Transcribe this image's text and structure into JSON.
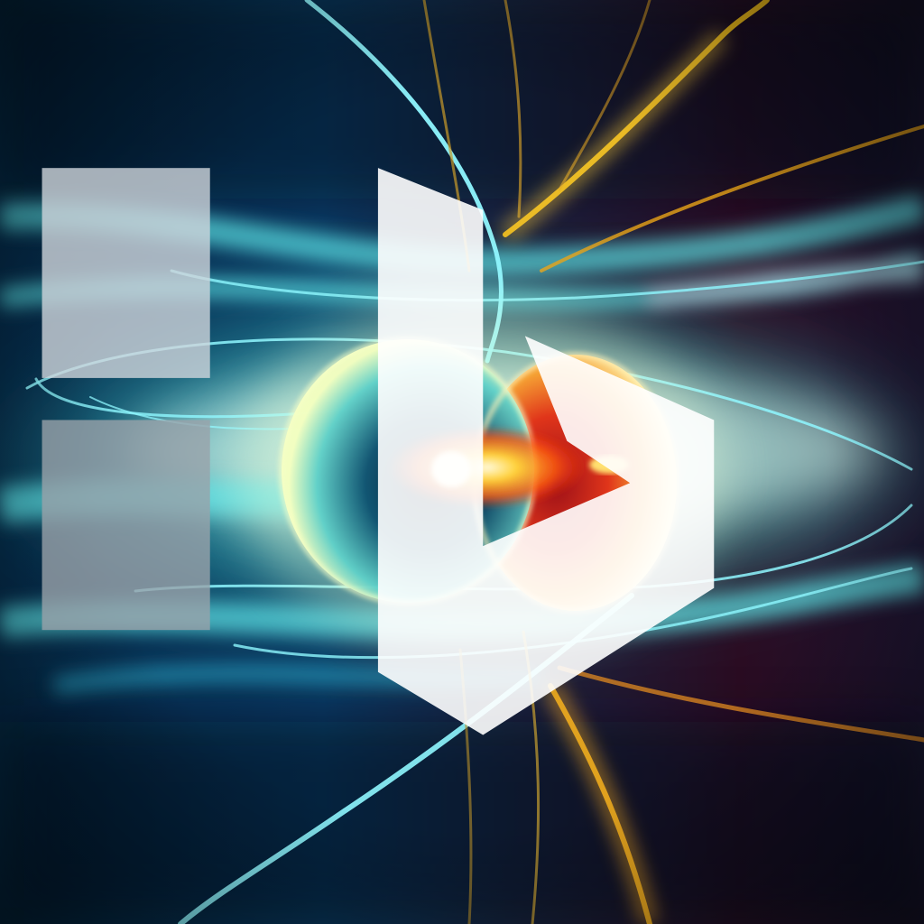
{
  "image": {
    "subject": "glowing-spheres-with-light-streaks",
    "palette": {
      "background_dark": "#06132a",
      "background_right": "#2a0c22",
      "cyan_streak": "#7ff6ff",
      "teal_glow": "#3fd6d2",
      "gold_streak": "#f2b21a",
      "orange_core": "#ff6a10",
      "red_core": "#c61a1a",
      "sphere_highlight": "#f6ffc8"
    },
    "watermark": {
      "icon": "bing-logo-icon"
    }
  }
}
